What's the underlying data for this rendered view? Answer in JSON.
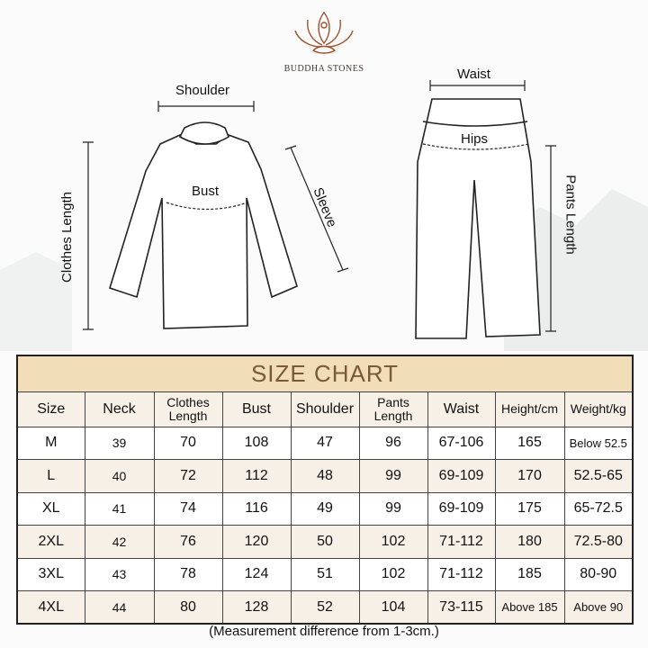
{
  "brand": "BUDDHA STONES",
  "labels": {
    "shoulder": "Shoulder",
    "bust": "Bust",
    "sleeve": "Sleeve",
    "clothes_length": "Clothes Length",
    "waist": "Waist",
    "hips": "Hips",
    "pants_length": "Pants Length"
  },
  "table": {
    "title": "SIZE CHART",
    "headers": [
      "Size",
      "Neck",
      "Clothes Length",
      "Bust",
      "Shoulder",
      "Pants Length",
      "Waist",
      "Height/cm",
      "Weight/kg"
    ],
    "rows": [
      [
        "M",
        "39",
        "70",
        "108",
        "47",
        "96",
        "67-106",
        "165",
        "Below 52.5"
      ],
      [
        "L",
        "40",
        "72",
        "112",
        "48",
        "99",
        "69-109",
        "170",
        "52.5-65"
      ],
      [
        "XL",
        "41",
        "74",
        "116",
        "49",
        "99",
        "69-109",
        "175",
        "65-72.5"
      ],
      [
        "2XL",
        "42",
        "76",
        "120",
        "50",
        "102",
        "71-112",
        "180",
        "72.5-80"
      ],
      [
        "3XL",
        "43",
        "78",
        "124",
        "51",
        "102",
        "71-112",
        "185",
        "80-90"
      ],
      [
        "4XL",
        "44",
        "80",
        "128",
        "52",
        "104",
        "73-115",
        "Above 185",
        "Above 90"
      ]
    ]
  },
  "note": "(Measurement difference from 1-3cm.)",
  "colors": {
    "title_band": "#f1ddb8",
    "title_text": "#7a5a35",
    "alt_row": "#f6f0e7",
    "logo": "#a0522d"
  }
}
